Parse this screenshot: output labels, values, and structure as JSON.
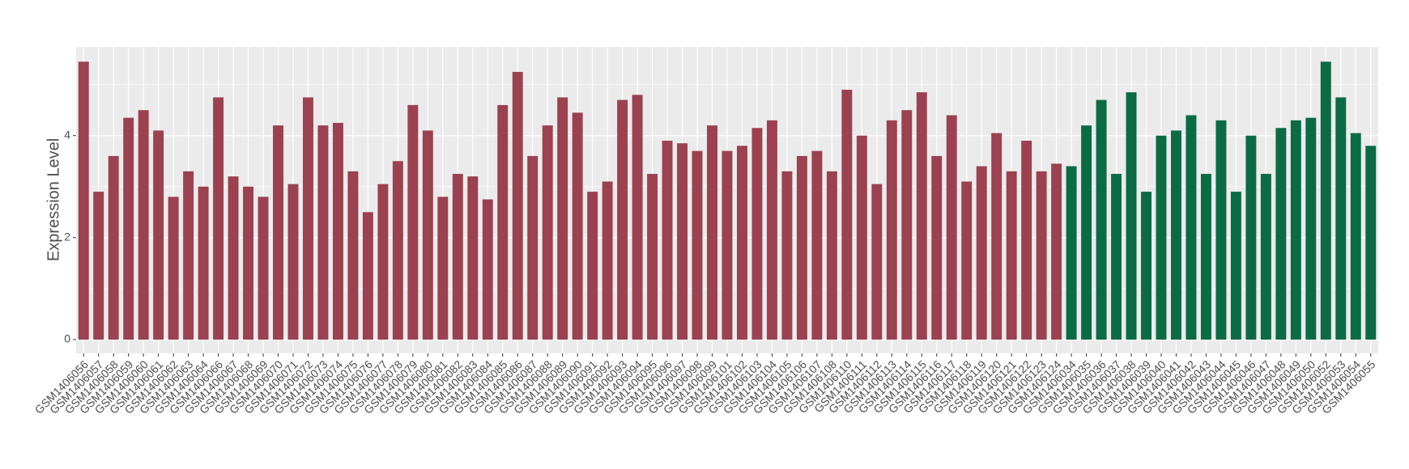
{
  "chart_data": {
    "type": "bar",
    "y_label": "Expression Level",
    "categories": [
      "GSM1406056",
      "GSM1406057",
      "GSM1406058",
      "GSM1406059",
      "GSM1406060",
      "GSM1406061",
      "GSM1406062",
      "GSM1406063",
      "GSM1406064",
      "GSM1406066",
      "GSM1406067",
      "GSM1406068",
      "GSM1406069",
      "GSM1406070",
      "GSM1406071",
      "GSM1406072",
      "GSM1406073",
      "GSM1406074",
      "GSM1406075",
      "GSM1406076",
      "GSM1406077",
      "GSM1406078",
      "GSM1406079",
      "GSM1406080",
      "GSM1406081",
      "GSM1406082",
      "GSM1406083",
      "GSM1406084",
      "GSM1406085",
      "GSM1406086",
      "GSM1406087",
      "GSM1406088",
      "GSM1406089",
      "GSM1406090",
      "GSM1406091",
      "GSM1406092",
      "GSM1406093",
      "GSM1406094",
      "GSM1406095",
      "GSM1406096",
      "GSM1406097",
      "GSM1406098",
      "GSM1406099",
      "GSM1406101",
      "GSM1406102",
      "GSM1406103",
      "GSM1406104",
      "GSM1406105",
      "GSM1406106",
      "GSM1406107",
      "GSM1406108",
      "GSM1406110",
      "GSM1406111",
      "GSM1406112",
      "GSM1406113",
      "GSM1406114",
      "GSM1406115",
      "GSM1406116",
      "GSM1406117",
      "GSM1406118",
      "GSM1406119",
      "GSM1406120",
      "GSM1406121",
      "GSM1406122",
      "GSM1406123",
      "GSM1406124",
      "GSM1406034",
      "GSM1406035",
      "GSM1406036",
      "GSM1406037",
      "GSM1406038",
      "GSM1406039",
      "GSM1406040",
      "GSM1406041",
      "GSM1406042",
      "GSM1406043",
      "GSM1406044",
      "GSM1406045",
      "GSM1406046",
      "GSM1406047",
      "GSM1406048",
      "GSM1406049",
      "GSM1406050",
      "GSM1406052",
      "GSM1406053",
      "GSM1406054",
      "GSM1406055"
    ],
    "series": [
      {
        "color": "#9b4150",
        "values": [
          5.45,
          2.9,
          3.6,
          4.35,
          4.5,
          4.1,
          2.8,
          3.3,
          3.0,
          4.75,
          3.2,
          3.0,
          2.8,
          4.2,
          3.05,
          4.75,
          4.2,
          4.25,
          3.3,
          2.5,
          3.05,
          3.5,
          4.6,
          4.1,
          2.8,
          3.25,
          3.2,
          2.75,
          4.6,
          5.25,
          3.6,
          4.2,
          4.75,
          4.45,
          2.9,
          3.1,
          4.7,
          4.8,
          3.25,
          3.9,
          3.85,
          3.7,
          4.2,
          3.7,
          3.8,
          4.15,
          4.3,
          3.3,
          3.6,
          3.7,
          3.3,
          4.9,
          4.0,
          3.05,
          4.3,
          4.5,
          4.85,
          3.6,
          4.4,
          3.1,
          3.4,
          4.05,
          3.3,
          3.9,
          3.3,
          3.45,
          null,
          null,
          null,
          null,
          null,
          null,
          null,
          null,
          null,
          null,
          null,
          null,
          null,
          null,
          null,
          null,
          null,
          null,
          null,
          null,
          null
        ]
      },
      {
        "color": "#0b6b45",
        "values": [
          null,
          null,
          null,
          null,
          null,
          null,
          null,
          null,
          null,
          null,
          null,
          null,
          null,
          null,
          null,
          null,
          null,
          null,
          null,
          null,
          null,
          null,
          null,
          null,
          null,
          null,
          null,
          null,
          null,
          null,
          null,
          null,
          null,
          null,
          null,
          null,
          null,
          null,
          null,
          null,
          null,
          null,
          null,
          null,
          null,
          null,
          null,
          null,
          null,
          null,
          null,
          null,
          null,
          null,
          null,
          null,
          null,
          null,
          null,
          null,
          null,
          null,
          null,
          null,
          null,
          null,
          3.4,
          4.2,
          4.7,
          3.25,
          4.85,
          2.9,
          4.0,
          4.1,
          4.4,
          3.25,
          4.3,
          2.9,
          4.0,
          3.25,
          4.15,
          4.3,
          4.35,
          5.45,
          4.75,
          4.05,
          3.8
        ]
      }
    ],
    "ylim": [
      -0.27,
      5.74
    ],
    "yticks": [
      0,
      2,
      4
    ],
    "grid": true
  }
}
